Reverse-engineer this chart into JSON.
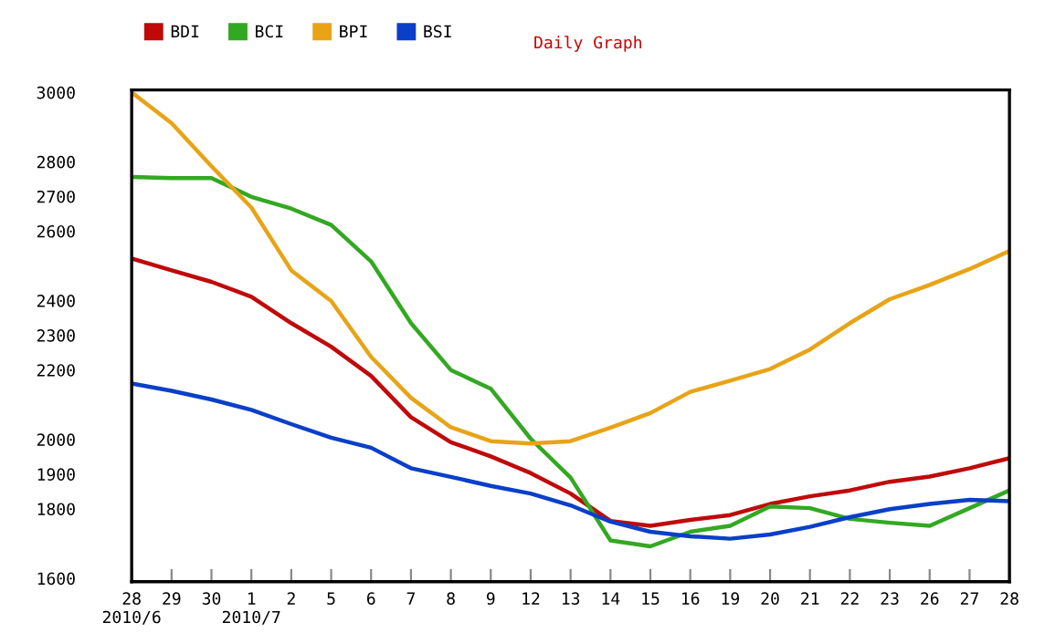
{
  "chart_data": {
    "type": "line",
    "title": "Daily Graph",
    "categories": [
      "28\n2010/6",
      "29",
      "30",
      "1\n2010/7",
      "2",
      "5",
      "6",
      "7",
      "8",
      "9",
      "12",
      "13",
      "14",
      "15",
      "16",
      "19",
      "20",
      "21",
      "22",
      "23",
      "26",
      "27",
      "28"
    ],
    "series": [
      {
        "name": "BDI",
        "color": "#c00a0a",
        "values": [
          2521,
          2487,
          2454,
          2411,
          2335,
          2267,
          2183,
          2064,
          1992,
          1951,
          1903,
          1844,
          1765,
          1751,
          1768,
          1782,
          1814,
          1836,
          1853,
          1878,
          1893,
          1917,
          1946
        ]
      },
      {
        "name": "BCI",
        "color": "#33a822",
        "values": [
          2756,
          2753,
          2753,
          2699,
          2665,
          2618,
          2513,
          2335,
          2200,
          2146,
          2002,
          1890,
          1709,
          1692,
          1734,
          1751,
          1807,
          1802,
          1771,
          1760,
          1751,
          1802,
          1853
        ]
      },
      {
        "name": "BPI",
        "color": "#e8a317",
        "values": [
          3000,
          2911,
          2787,
          2668,
          2487,
          2399,
          2238,
          2120,
          2035,
          1995,
          1988,
          1995,
          2034,
          2076,
          2137,
          2169,
          2203,
          2259,
          2335,
          2404,
          2445,
          2491,
          2543
        ]
      },
      {
        "name": "BSI",
        "color": "#0a3fc8",
        "values": [
          2161,
          2140,
          2115,
          2085,
          2044,
          2005,
          1976,
          1917,
          1892,
          1866,
          1844,
          1810,
          1763,
          1734,
          1721,
          1714,
          1726,
          1748,
          1776,
          1799,
          1814,
          1826,
          1822
        ]
      }
    ],
    "ylim": [
      1590,
      3007
    ],
    "yticks": [
      3000,
      2800,
      2700,
      2600,
      2400,
      2300,
      2200,
      2000,
      1900,
      1800,
      1600
    ],
    "grid": false,
    "legend": "top",
    "marker": "none",
    "line_style": "solid"
  }
}
